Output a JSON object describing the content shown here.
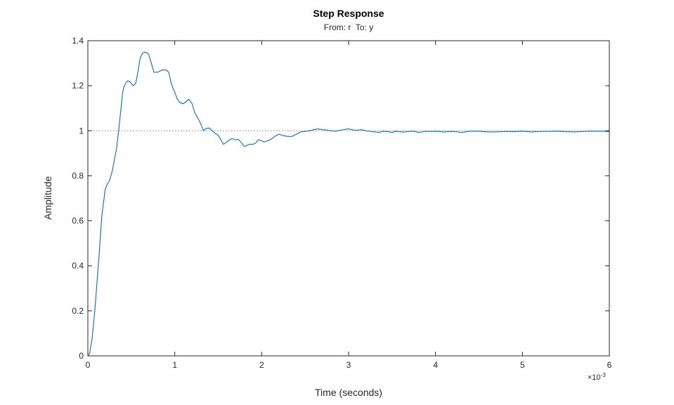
{
  "chart_data": {
    "type": "line",
    "title": "Step Response",
    "subtitle": "From: r  To: y",
    "xlabel": "Time (seconds)",
    "ylabel": "Amplitude",
    "x_exponent_base": "×10",
    "x_exponent_power": "-3",
    "xlim": [
      0,
      6
    ],
    "ylim": [
      0,
      1.4
    ],
    "xticks": [
      0,
      1,
      2,
      3,
      4,
      5,
      6
    ],
    "xtick_labels": [
      "0",
      "1",
      "2",
      "3",
      "4",
      "5",
      "6"
    ],
    "yticks": [
      0,
      0.2,
      0.4,
      0.6,
      0.8,
      1,
      1.2,
      1.4
    ],
    "ytick_labels": [
      "0",
      "0.2",
      "0.4",
      "0.6",
      "0.8",
      "1",
      "1.2",
      "1.4"
    ],
    "grid": false,
    "reference_line": {
      "y": 1,
      "style": "dotted"
    },
    "colors": {
      "series": "#0072BD",
      "axes": "#262626",
      "reference": "#7f7f7f"
    },
    "series": [
      {
        "x": [
          0,
          0.02,
          0.05,
          0.08,
          0.1,
          0.13,
          0.16,
          0.2,
          0.22,
          0.25,
          0.28,
          0.3,
          0.33,
          0.36,
          0.4,
          0.42,
          0.45,
          0.48,
          0.5,
          0.52,
          0.55,
          0.58,
          0.6,
          0.63,
          0.66,
          0.7,
          0.73,
          0.76,
          0.8,
          0.83,
          0.86,
          0.9,
          0.93,
          0.96,
          1.0,
          1.03,
          1.06,
          1.1,
          1.13,
          1.16,
          1.2,
          1.23,
          1.26,
          1.3,
          1.33,
          1.36,
          1.4,
          1.43,
          1.46,
          1.5,
          1.53,
          1.56,
          1.6,
          1.63,
          1.66,
          1.7,
          1.73,
          1.76,
          1.8,
          1.83,
          1.86,
          1.9,
          1.93,
          1.96,
          2.0,
          2.03,
          2.06,
          2.1,
          2.15,
          2.2,
          2.25,
          2.3,
          2.35,
          2.4,
          2.45,
          2.5,
          2.55,
          2.6,
          2.65,
          2.7,
          2.75,
          2.8,
          2.85,
          2.9,
          2.95,
          3.0,
          3.05,
          3.1,
          3.15,
          3.2,
          3.25,
          3.3,
          3.35,
          3.4,
          3.45,
          3.5,
          3.55,
          3.6,
          3.65,
          3.7,
          3.75,
          3.8,
          3.85,
          3.9,
          3.95,
          4.0,
          4.1,
          4.2,
          4.3,
          4.4,
          4.5,
          4.6,
          4.7,
          4.8,
          4.9,
          5.0,
          5.1,
          5.2,
          5.3,
          5.4,
          5.5,
          5.6,
          5.7,
          5.8,
          5.9,
          6.0
        ],
        "y": [
          0,
          0.01,
          0.08,
          0.2,
          0.3,
          0.45,
          0.62,
          0.74,
          0.76,
          0.78,
          0.82,
          0.86,
          0.92,
          1.02,
          1.17,
          1.2,
          1.22,
          1.22,
          1.21,
          1.2,
          1.21,
          1.27,
          1.32,
          1.345,
          1.35,
          1.34,
          1.3,
          1.26,
          1.26,
          1.265,
          1.27,
          1.27,
          1.26,
          1.21,
          1.17,
          1.14,
          1.125,
          1.12,
          1.13,
          1.14,
          1.12,
          1.08,
          1.06,
          1.03,
          1.0,
          1.01,
          1.012,
          1.0,
          0.99,
          0.98,
          0.96,
          0.94,
          0.95,
          0.96,
          0.965,
          0.96,
          0.962,
          0.95,
          0.93,
          0.935,
          0.94,
          0.94,
          0.945,
          0.96,
          0.955,
          0.95,
          0.955,
          0.96,
          0.975,
          0.985,
          0.978,
          0.975,
          0.975,
          0.985,
          0.995,
          0.997,
          1.0,
          1.005,
          1.008,
          1.005,
          1.003,
          1.0,
          0.998,
          1.002,
          1.006,
          1.008,
          1.004,
          1.002,
          1.005,
          1.0,
          0.997,
          0.995,
          0.993,
          0.998,
          0.996,
          0.993,
          0.998,
          0.995,
          0.995,
          0.997,
          0.998,
          0.993,
          0.995,
          0.998,
          0.997,
          0.998,
          0.995,
          0.997,
          0.993,
          0.998,
          0.998,
          0.995,
          0.995,
          0.997,
          0.996,
          0.998,
          0.995,
          0.997,
          0.997,
          0.998,
          0.996,
          0.995,
          0.997,
          0.998,
          0.998,
          0.996
        ]
      }
    ]
  }
}
